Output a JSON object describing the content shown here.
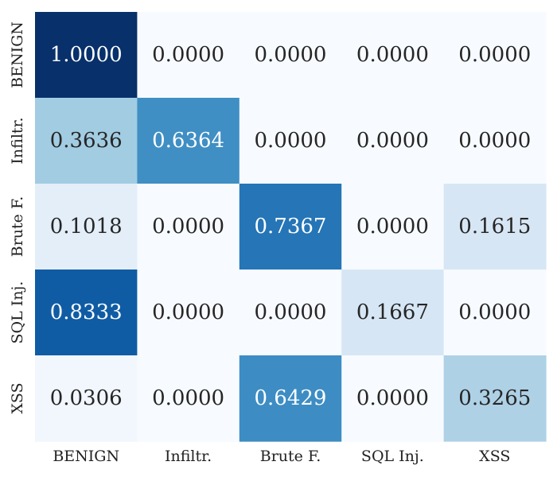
{
  "chart_data": {
    "type": "heatmap",
    "title": "",
    "xlabel": "",
    "ylabel": "",
    "x_labels": [
      "BENIGN",
      "Infiltr.",
      "Brute F.",
      "SQL Inj.",
      "XSS"
    ],
    "y_labels": [
      "BENIGN",
      "Infiltr.",
      "Brute F.",
      "SQL Inj.",
      "XSS"
    ],
    "values": [
      [
        1.0,
        0.0,
        0.0,
        0.0,
        0.0
      ],
      [
        0.3636,
        0.6364,
        0.0,
        0.0,
        0.0
      ],
      [
        0.1018,
        0.0,
        0.7367,
        0.0,
        0.1615
      ],
      [
        0.8333,
        0.0,
        0.0,
        0.1667,
        0.0
      ],
      [
        0.0306,
        0.0,
        0.6429,
        0.0,
        0.3265
      ]
    ],
    "value_format": "0.0000",
    "colormap": "Blues",
    "vmin": 0,
    "vmax": 1,
    "colorbar": false,
    "grid": false
  }
}
